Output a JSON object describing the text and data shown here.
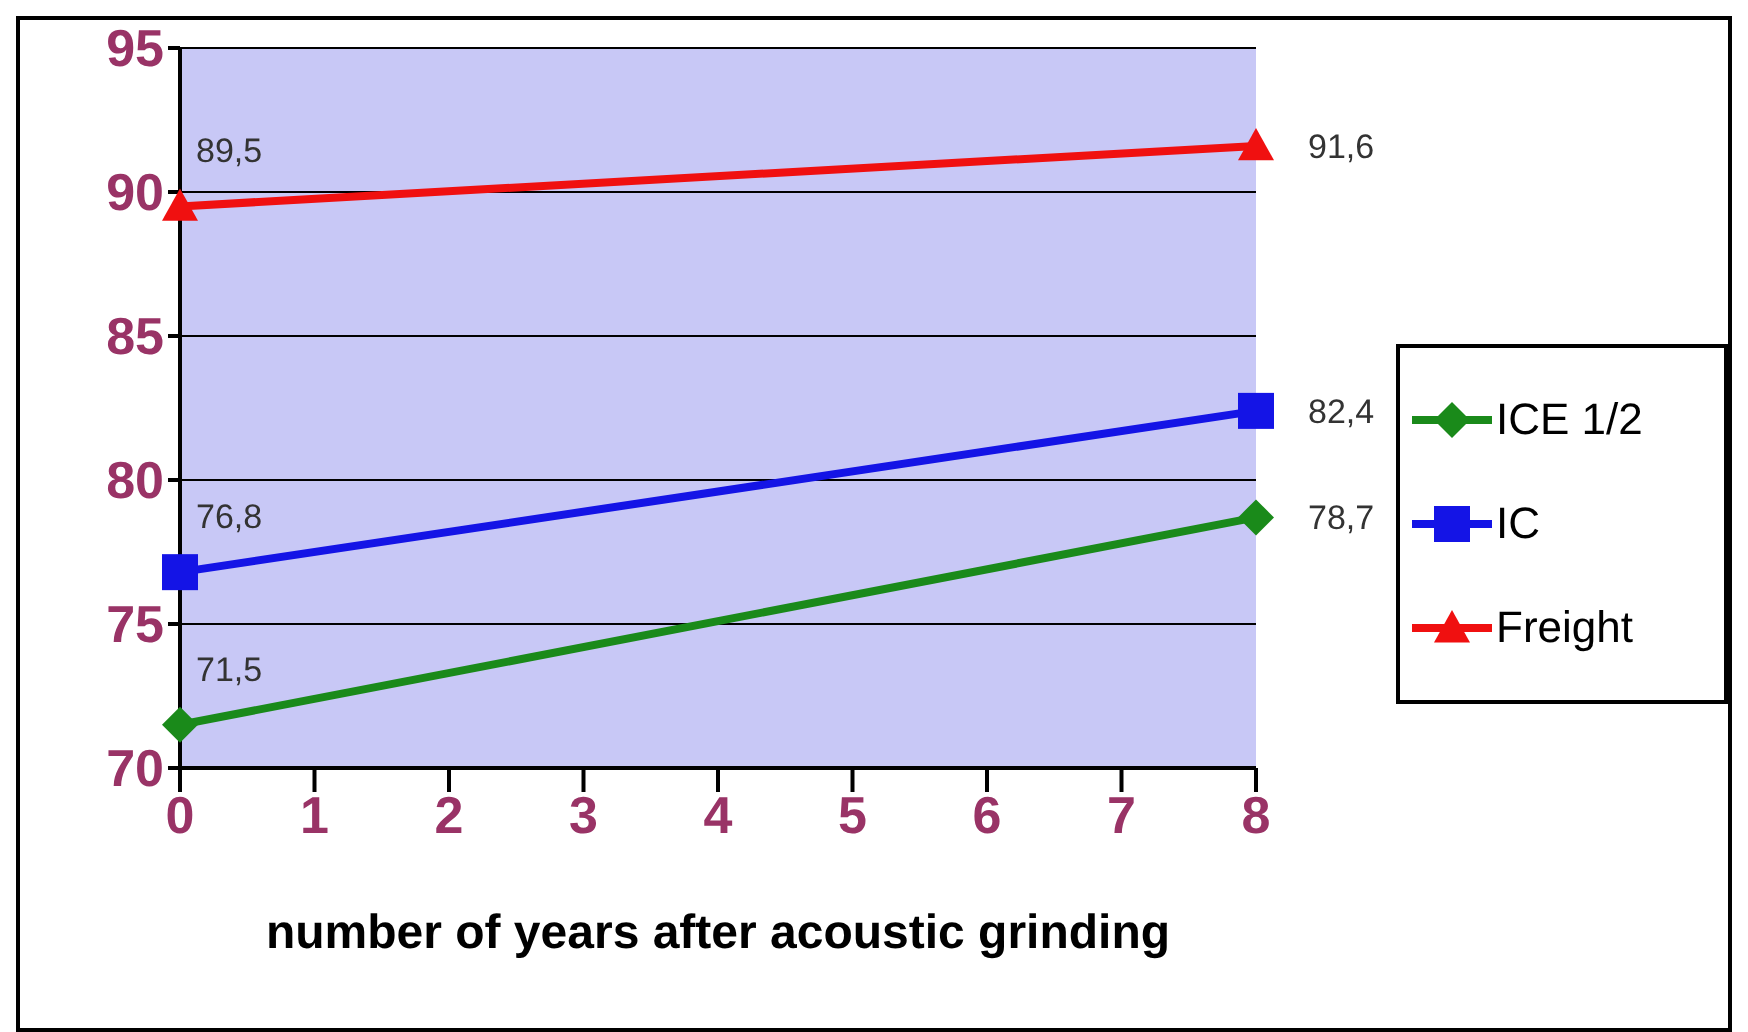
{
  "chart_data": {
    "type": "line",
    "xlabel": "number of years after acoustic grinding",
    "x": [
      0,
      8
    ],
    "series": [
      {
        "name": "ICE 1/2",
        "color": "#1a8a1a",
        "values": [
          71.5,
          78.7
        ],
        "marker": "diamond",
        "value_labels": [
          "71,5",
          "78,7"
        ]
      },
      {
        "name": "IC",
        "color": "#1414e6",
        "values": [
          76.8,
          82.4
        ],
        "marker": "square",
        "value_labels": [
          "76,8",
          "82,4"
        ]
      },
      {
        "name": "Freight",
        "color": "#f01010",
        "values": [
          89.5,
          91.6
        ],
        "marker": "triangle",
        "value_labels": [
          "89,5",
          "91,6"
        ]
      }
    ],
    "xlim": [
      0,
      8
    ],
    "xticks": [
      0,
      1,
      2,
      3,
      4,
      5,
      6,
      7,
      8
    ],
    "ylim": [
      70,
      95
    ],
    "yticks": [
      70,
      75,
      80,
      85,
      90,
      95
    ],
    "grid": "y",
    "legend": "right",
    "line_style": "solid"
  }
}
